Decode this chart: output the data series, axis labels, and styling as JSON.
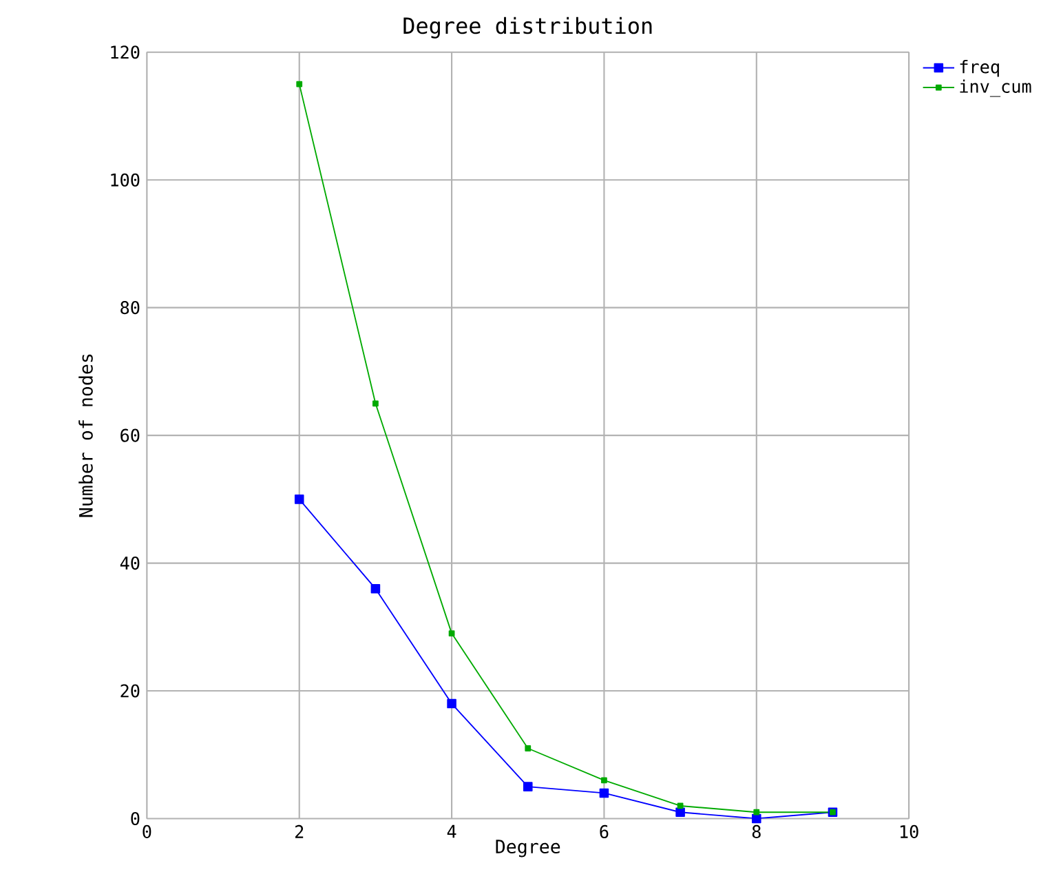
{
  "chart_data": {
    "type": "line",
    "title": "Degree distribution",
    "xlabel": "Degree",
    "ylabel": "Number of nodes",
    "x": [
      2,
      3,
      4,
      5,
      6,
      7,
      8,
      9
    ],
    "series": [
      {
        "name": "freq",
        "color": "#0000ff",
        "values": [
          50,
          36,
          18,
          5,
          4,
          1,
          0,
          1
        ]
      },
      {
        "name": "inv_cum",
        "color": "#00aa00",
        "values": [
          115,
          65,
          29,
          11,
          6,
          2,
          1,
          1
        ]
      }
    ],
    "xlim": [
      0,
      10
    ],
    "ylim": [
      0,
      120
    ],
    "xticks": [
      0,
      2,
      4,
      6,
      8,
      10
    ],
    "yticks": [
      0,
      20,
      40,
      60,
      80,
      100,
      120
    ],
    "grid": true,
    "legend": "top right",
    "marker": "square",
    "line_style": "solid"
  }
}
